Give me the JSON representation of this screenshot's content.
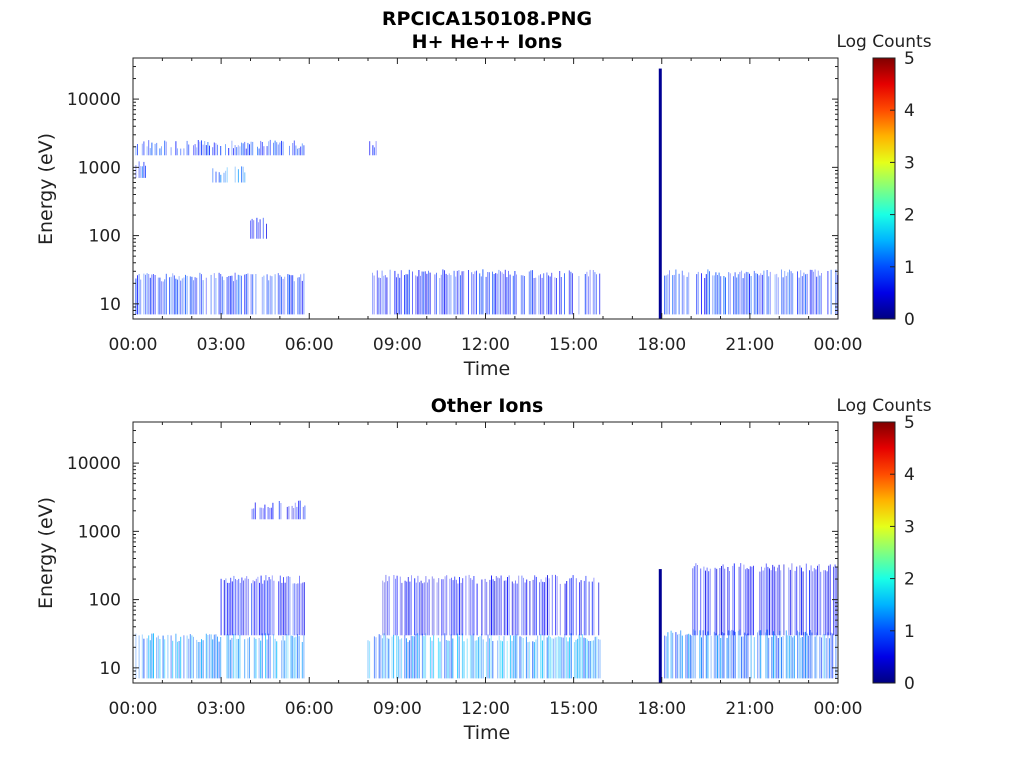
{
  "figure_title": "RPCICA150108.PNG",
  "colorbar": {
    "label": "Log Counts",
    "min": 0,
    "max": 5,
    "ticks": [
      "0",
      "1",
      "2",
      "3",
      "4",
      "5"
    ],
    "colormap": "jet"
  },
  "chart_data": [
    {
      "type": "heatmap",
      "title": "H+ He++ Ions",
      "xlabel": "Time",
      "ylabel": "Energy (eV)",
      "x_ticks": [
        "00:00",
        "03:00",
        "06:00",
        "09:00",
        "12:00",
        "15:00",
        "18:00",
        "21:00",
        "00:00"
      ],
      "x_range_hours": [
        0,
        24
      ],
      "y_scale": "log",
      "y_range": [
        6,
        40000
      ],
      "y_ticks": [
        "10",
        "100",
        "1000",
        "10000"
      ],
      "bands": [
        {
          "t": [
            0.1,
            5.9
          ],
          "e": [
            7,
            25
          ],
          "level": 1.0
        },
        {
          "t": [
            8.1,
            15.9
          ],
          "e": [
            7,
            28
          ],
          "level": 0.9
        },
        {
          "t": [
            18.1,
            24.0
          ],
          "e": [
            7,
            28
          ],
          "level": 1.0
        },
        {
          "t": [
            0.1,
            5.9
          ],
          "e": [
            1500,
            2200
          ],
          "level": 1.0
        },
        {
          "t": [
            0.1,
            0.5
          ],
          "e": [
            700,
            1100
          ],
          "level": 1.1
        },
        {
          "t": [
            2.5,
            3.9
          ],
          "e": [
            600,
            900
          ],
          "level": 1.3
        },
        {
          "t": [
            4.0,
            4.6
          ],
          "e": [
            90,
            160
          ],
          "level": 0.8
        },
        {
          "t": [
            7.95,
            8.3
          ],
          "e": [
            1500,
            2200
          ],
          "level": 0.9
        }
      ],
      "spike": {
        "t": 17.95,
        "e": [
          6,
          28000
        ],
        "level": 0.1
      }
    },
    {
      "type": "heatmap",
      "title": "Other Ions",
      "xlabel": "Time",
      "ylabel": "Energy (eV)",
      "x_ticks": [
        "00:00",
        "03:00",
        "06:00",
        "09:00",
        "12:00",
        "15:00",
        "18:00",
        "21:00",
        "00:00"
      ],
      "x_range_hours": [
        0,
        24
      ],
      "y_scale": "log",
      "y_range": [
        6,
        40000
      ],
      "y_ticks": [
        "10",
        "100",
        "1000",
        "10000"
      ],
      "bands": [
        {
          "t": [
            0.1,
            5.9
          ],
          "e": [
            7,
            28
          ],
          "level": 1.5
        },
        {
          "t": [
            8.0,
            15.9
          ],
          "e": [
            7,
            28
          ],
          "level": 1.5
        },
        {
          "t": [
            18.1,
            24.0
          ],
          "e": [
            7,
            32
          ],
          "level": 1.3
        },
        {
          "t": [
            3.0,
            5.9
          ],
          "e": [
            30,
            200
          ],
          "level": 0.8
        },
        {
          "t": [
            8.5,
            15.9
          ],
          "e": [
            30,
            200
          ],
          "level": 0.7
        },
        {
          "t": [
            19.0,
            24.0
          ],
          "e": [
            30,
            300
          ],
          "level": 0.7
        },
        {
          "t": [
            4.0,
            5.9
          ],
          "e": [
            1500,
            2500
          ],
          "level": 0.8
        }
      ],
      "spike": {
        "t": 17.95,
        "e": [
          6,
          280
        ],
        "level": 0.1
      }
    }
  ]
}
